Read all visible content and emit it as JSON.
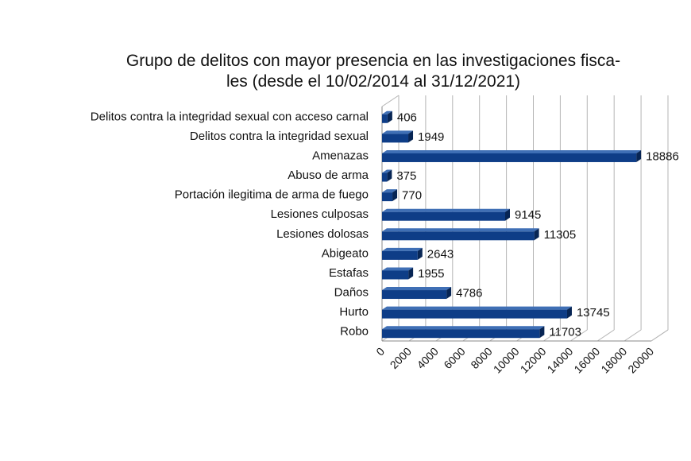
{
  "chart_data": {
    "type": "bar",
    "orientation": "horizontal",
    "title_lines": [
      "Grupo de delitos con mayor presencia en las investigaciones fisca-",
      "les (desde el 10/02/2014 al 31/12/2021)"
    ],
    "categories": [
      "Delitos contra la integridad sexual con acceso carnal",
      "Delitos contra la integridad sexual",
      "Amenazas",
      "Abuso de arma",
      "Portación ilegitima de arma de fuego",
      "Lesiones culposas",
      "Lesiones dolosas",
      "Abigeato",
      "Estafas",
      "Daños",
      "Hurto",
      "Robo"
    ],
    "values": [
      406,
      1949,
      18886,
      375,
      770,
      9145,
      11305,
      2643,
      1955,
      4786,
      13745,
      11703
    ],
    "xlim": [
      0,
      20000
    ],
    "x_ticks": [
      "0",
      "2000",
      "4000",
      "6000",
      "8000",
      "10000",
      "12000",
      "14000",
      "16000",
      "18000",
      "20000"
    ],
    "grid": true,
    "legend": "none",
    "colors": {
      "bar": "#0e3d87",
      "bar_top": "#3f6fb5",
      "bar_side": "#072554",
      "grid": "#b4b4b4"
    }
  }
}
